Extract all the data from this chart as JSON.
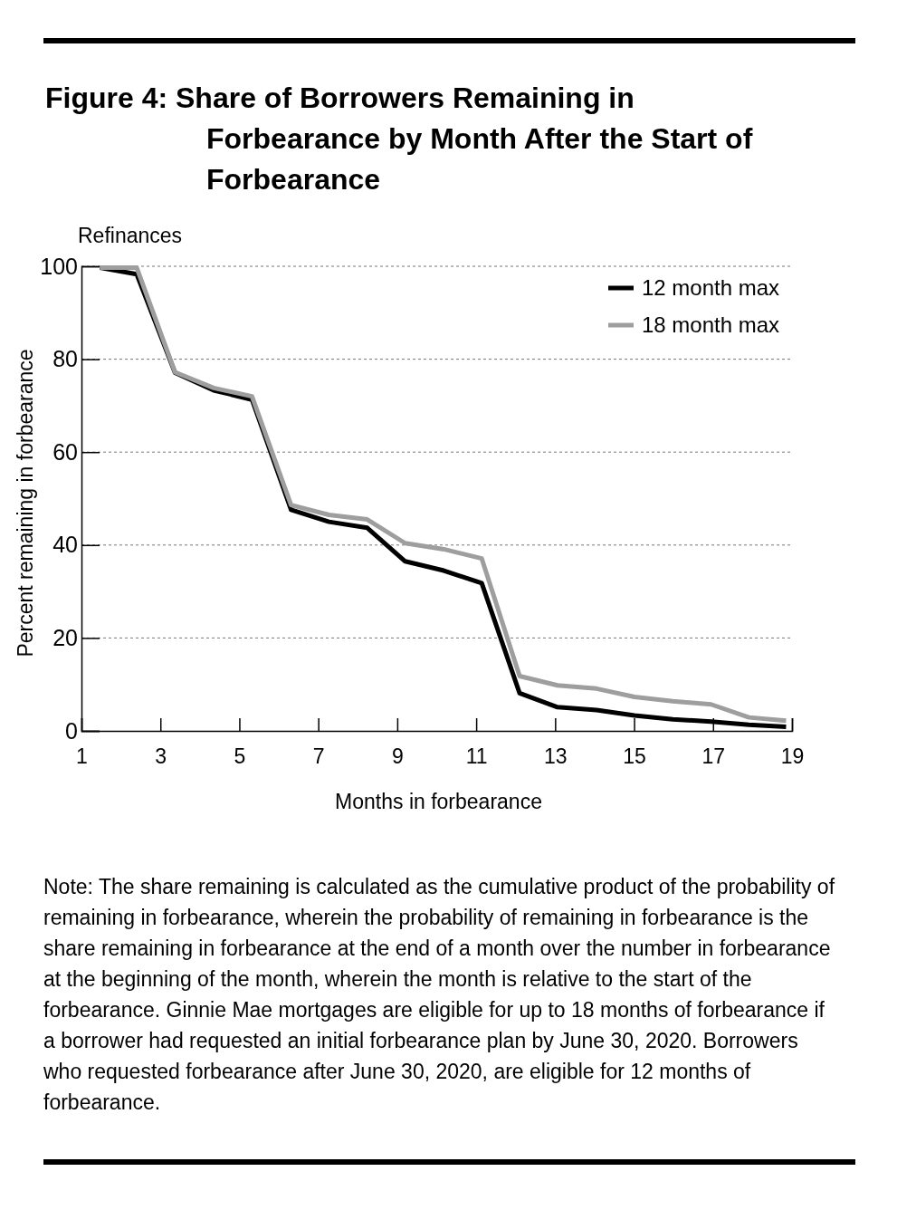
{
  "chart_data": {
    "type": "line",
    "title": "Figure 4: Share of Borrowers Remaining in Forbearance by Month After the Start of Forbearance",
    "subtitle": "Refinances",
    "xlabel": "Months in forbearance",
    "ylabel": "Percent remaining in forbearance",
    "x": [
      1.47,
      2.4,
      3.37,
      4.35,
      5.32,
      6.31,
      7.27,
      8.24,
      9.2,
      10.18,
      11.14,
      12.1,
      13.06,
      14.05,
      15.01,
      15.98,
      16.95,
      17.91,
      18.85
    ],
    "series": [
      {
        "name": "12 month max",
        "color": "#000000",
        "values": [
          99.7,
          98.3,
          77.1,
          73.3,
          71.3,
          47.6,
          45.0,
          43.7,
          36.5,
          34.5,
          31.8,
          8.1,
          5.1,
          4.5,
          3.3,
          2.5,
          2.0,
          1.3,
          0.9
        ]
      },
      {
        "name": "18 month max",
        "color": "#9e9e9e",
        "values": [
          99.7,
          99.7,
          77.2,
          73.8,
          72.0,
          48.6,
          46.5,
          45.5,
          40.4,
          39.1,
          37.1,
          11.8,
          9.8,
          9.1,
          7.3,
          6.4,
          5.7,
          2.9,
          2.2
        ]
      }
    ],
    "xlim": [
      1,
      19
    ],
    "xticks": [
      1,
      3,
      5,
      7,
      9,
      11,
      13,
      15,
      17,
      19
    ],
    "ylim": [
      0,
      100
    ],
    "yticks": [
      0,
      20,
      40,
      60,
      80,
      100
    ],
    "grid": "y",
    "legend": "top right",
    "marker": "none",
    "line_style": "solid",
    "annotations": [
      "Note: The share remaining is calculated as the cumulative product of the probability of remaining in forbearance, wherein the probability of remaining in forbearance is the share remaining in forbearance at the end of a month over the number in forbearance at the beginning of the month, wherein the month is relative to the start of the forbearance. Ginnie Mae mortgages are eligible for up to 18 months of forbearance if a borrower had requested an initial forbearance plan by June 30, 2020. Borrowers who requested forbearance after June 30, 2020, are eligible for 12 months of forbearance."
    ]
  }
}
